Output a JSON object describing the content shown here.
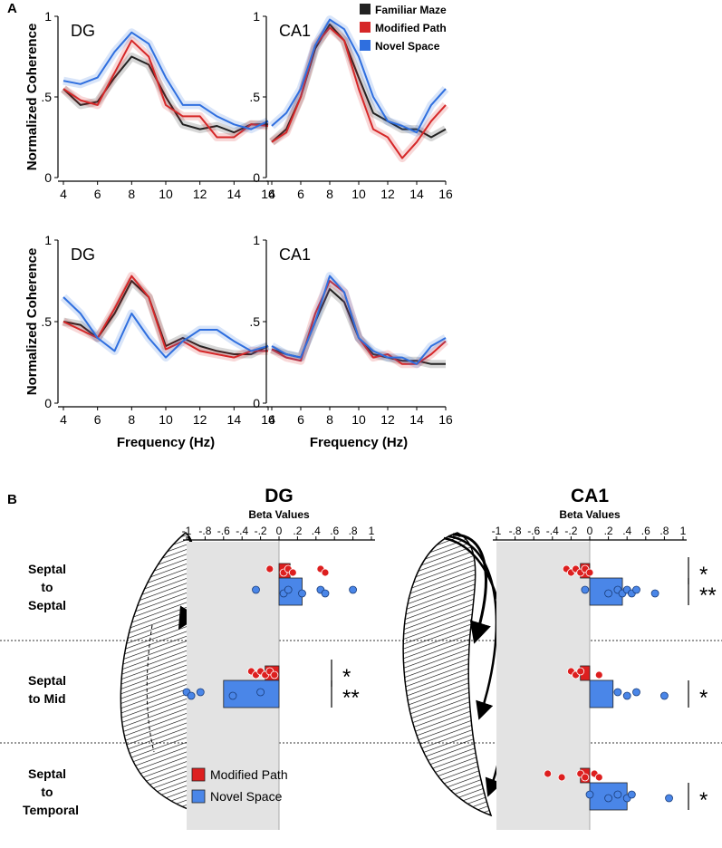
{
  "panels": [
    "A",
    "B"
  ],
  "chart_data": [
    {
      "type": "line",
      "title": "DG",
      "ylabel": "Normalized Coherence",
      "x": [
        4,
        5,
        6,
        7,
        8,
        9,
        10,
        11,
        12,
        13,
        14,
        15,
        16
      ],
      "xlim": [
        4,
        16
      ],
      "ylim": [
        0,
        1
      ],
      "xticks": [
        4,
        6,
        8,
        10,
        12,
        14,
        16
      ],
      "yticks": [
        0,
        {
          "value": 0.5,
          "label": ".5"
        },
        1
      ],
      "series": [
        {
          "color": "#222222",
          "values": [
            0.55,
            0.45,
            0.47,
            0.62,
            0.75,
            0.7,
            0.5,
            0.33,
            0.3,
            0.32,
            0.28,
            0.33,
            0.33
          ]
        },
        {
          "color": "#d62728",
          "values": [
            0.55,
            0.48,
            0.45,
            0.65,
            0.85,
            0.75,
            0.45,
            0.38,
            0.38,
            0.25,
            0.25,
            0.33,
            0.32
          ]
        },
        {
          "color": "#2f6fdf",
          "values": [
            0.6,
            0.58,
            0.62,
            0.78,
            0.9,
            0.83,
            0.62,
            0.45,
            0.45,
            0.38,
            0.33,
            0.3,
            0.35
          ]
        }
      ]
    },
    {
      "type": "line",
      "title": "CA1",
      "legend": "upper right",
      "x": [
        4,
        5,
        6,
        7,
        8,
        9,
        10,
        11,
        12,
        13,
        14,
        15,
        16
      ],
      "xlim": [
        4,
        16
      ],
      "ylim": [
        0,
        1
      ],
      "xticks": [
        4,
        6,
        8,
        10,
        12,
        14,
        16
      ],
      "yticks": [
        0,
        {
          "value": 0.5,
          "label": ".5"
        },
        1
      ],
      "series": [
        {
          "name": "Familiar Maze",
          "color": "#222222",
          "values": [
            0.22,
            0.3,
            0.5,
            0.8,
            0.95,
            0.85,
            0.62,
            0.4,
            0.35,
            0.3,
            0.3,
            0.25,
            0.3
          ]
        },
        {
          "name": "Modified Path",
          "color": "#d62728",
          "values": [
            0.22,
            0.28,
            0.5,
            0.82,
            0.93,
            0.85,
            0.55,
            0.3,
            0.25,
            0.12,
            0.22,
            0.35,
            0.45
          ]
        },
        {
          "name": "Novel Space",
          "color": "#2f6fdf",
          "values": [
            0.32,
            0.4,
            0.55,
            0.82,
            0.98,
            0.92,
            0.75,
            0.5,
            0.35,
            0.32,
            0.28,
            0.45,
            0.55
          ]
        }
      ]
    },
    {
      "type": "line",
      "title": "DG",
      "ylabel": "Normalized Coherence",
      "xlabel": "Frequency (Hz)",
      "x": [
        4,
        5,
        6,
        7,
        8,
        9,
        10,
        11,
        12,
        13,
        14,
        15,
        16
      ],
      "xlim": [
        4,
        16
      ],
      "ylim": [
        0,
        1
      ],
      "xticks": [
        4,
        6,
        8,
        10,
        12,
        14,
        16
      ],
      "yticks": [
        0,
        {
          "value": 0.5,
          "label": ".5"
        },
        1
      ],
      "series": [
        {
          "color": "#222222",
          "values": [
            0.5,
            0.48,
            0.4,
            0.55,
            0.75,
            0.65,
            0.35,
            0.4,
            0.35,
            0.32,
            0.3,
            0.3,
            0.35
          ]
        },
        {
          "color": "#d62728",
          "values": [
            0.5,
            0.45,
            0.4,
            0.58,
            0.78,
            0.65,
            0.33,
            0.38,
            0.32,
            0.3,
            0.28,
            0.32,
            0.32
          ]
        },
        {
          "color": "#2f6fdf",
          "values": [
            0.65,
            0.55,
            0.4,
            0.32,
            0.55,
            0.4,
            0.28,
            0.38,
            0.45,
            0.45,
            0.38,
            0.32,
            0.35
          ]
        }
      ]
    },
    {
      "type": "line",
      "title": "CA1",
      "xlabel": "Frequency (Hz)",
      "x": [
        4,
        5,
        6,
        7,
        8,
        9,
        10,
        11,
        12,
        13,
        14,
        15,
        16
      ],
      "xlim": [
        4,
        16
      ],
      "ylim": [
        0,
        1
      ],
      "xticks": [
        4,
        6,
        8,
        10,
        12,
        14,
        16
      ],
      "yticks": [
        0,
        {
          "value": 0.5,
          "label": ".5"
        },
        1
      ],
      "series": [
        {
          "color": "#222222",
          "values": [
            0.33,
            0.3,
            0.28,
            0.5,
            0.7,
            0.62,
            0.4,
            0.3,
            0.28,
            0.26,
            0.26,
            0.24,
            0.24
          ]
        },
        {
          "color": "#d62728",
          "values": [
            0.33,
            0.28,
            0.26,
            0.55,
            0.75,
            0.68,
            0.4,
            0.28,
            0.3,
            0.24,
            0.24,
            0.3,
            0.38
          ]
        },
        {
          "color": "#2f6fdf",
          "values": [
            0.35,
            0.3,
            0.28,
            0.5,
            0.78,
            0.68,
            0.4,
            0.32,
            0.28,
            0.28,
            0.24,
            0.35,
            0.4
          ]
        }
      ]
    },
    {
      "type": "hbar",
      "title": "DG",
      "xlabel": "Beta Values",
      "legend": "lower left",
      "categories": [
        "Septal to Septal",
        "Septal to Mid",
        "Septal to Temporal"
      ],
      "xlim": [
        -1,
        1
      ],
      "xticks": [
        -1,
        {
          "value": -0.8,
          "label": "-.8"
        },
        {
          "value": -0.6,
          "label": "-.6"
        },
        {
          "value": -0.4,
          "label": "-.4"
        },
        {
          "value": -0.2,
          "label": "-.2"
        },
        0,
        {
          "value": 0.2,
          "label": ".2"
        },
        {
          "value": 0.4,
          "label": ".4"
        },
        {
          "value": 0.6,
          "label": ".6"
        },
        {
          "value": 0.8,
          "label": ".8"
        },
        1
      ],
      "series": [
        {
          "name": "Modified Path",
          "color": "#dd1f1f",
          "values": [
            0.12,
            -0.15,
            null
          ],
          "points": [
            [
              -0.1,
              0.05,
              0.1,
              0.15,
              0.45,
              0.5
            ],
            [
              -0.3,
              -0.25,
              -0.2,
              -0.15,
              -0.1,
              -0.05
            ],
            null
          ],
          "stars": [
            null,
            "*",
            null
          ]
        },
        {
          "name": "Novel Space",
          "color": "#4a86e8",
          "values": [
            0.25,
            -0.6,
            null
          ],
          "points": [
            [
              -0.25,
              0.05,
              0.1,
              0.25,
              0.45,
              0.5,
              0.8
            ],
            [
              -1.0,
              -0.95,
              -0.85,
              -0.5,
              -0.2
            ],
            null
          ],
          "stars": [
            null,
            "**",
            null
          ]
        }
      ]
    },
    {
      "type": "hbar",
      "title": "CA1",
      "xlabel": "Beta Values",
      "xlim": [
        -1,
        1
      ],
      "xticks": [
        -1,
        {
          "value": -0.8,
          "label": "-.8"
        },
        {
          "value": -0.6,
          "label": "-.6"
        },
        {
          "value": -0.4,
          "label": "-.4"
        },
        {
          "value": -0.2,
          "label": "-.2"
        },
        0,
        {
          "value": 0.2,
          "label": ".2"
        },
        {
          "value": 0.4,
          "label": ".4"
        },
        {
          "value": 0.6,
          "label": ".6"
        },
        {
          "value": 0.8,
          "label": ".8"
        },
        1
      ],
      "series": [
        {
          "color": "#dd1f1f",
          "values": [
            -0.1,
            -0.1,
            -0.1
          ],
          "points": [
            [
              -0.25,
              -0.2,
              -0.15,
              -0.1,
              -0.05,
              0
            ],
            [
              -0.2,
              -0.15,
              -0.1,
              0.1
            ],
            [
              -0.45,
              -0.3,
              -0.1,
              -0.05,
              0.05,
              0.1
            ]
          ],
          "stars": [
            "*",
            null,
            null
          ]
        },
        {
          "color": "#4a86e8",
          "values": [
            0.35,
            0.25,
            0.4
          ],
          "points": [
            [
              -0.05,
              0.2,
              0.3,
              0.35,
              0.4,
              0.45,
              0.5,
              0.7
            ],
            [
              0.3,
              0.4,
              0.5,
              0.8
            ],
            [
              0,
              0.2,
              0.3,
              0.4,
              0.45,
              0.85
            ]
          ],
          "stars": [
            "**",
            "*",
            "*"
          ]
        }
      ]
    }
  ]
}
